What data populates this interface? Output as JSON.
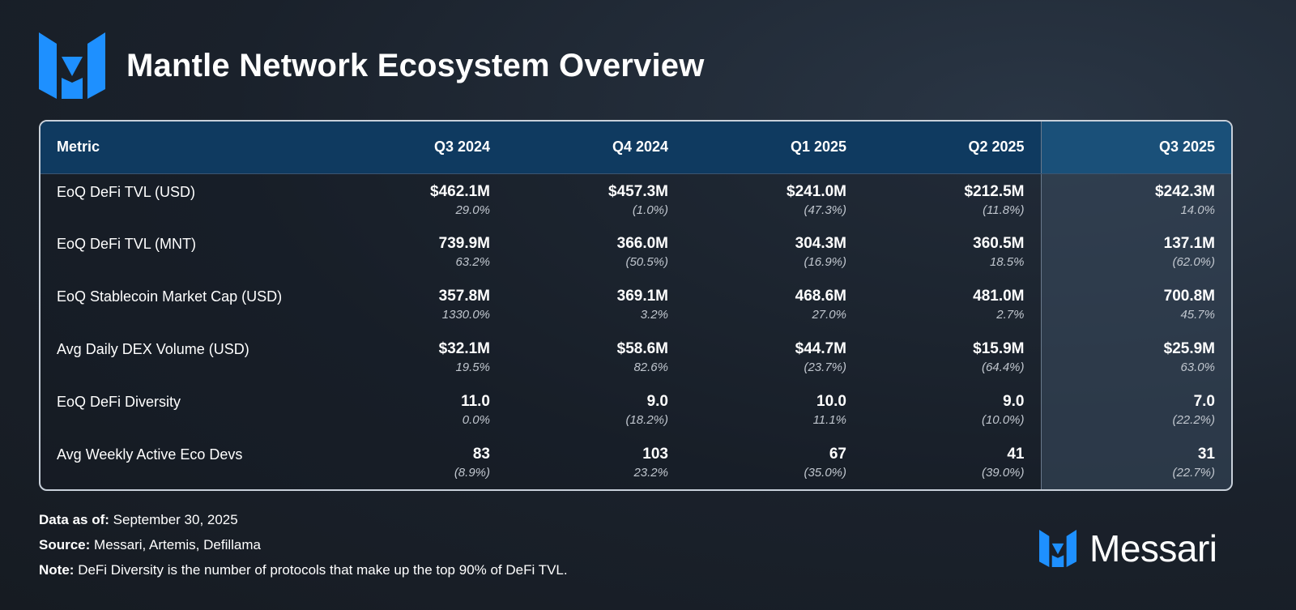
{
  "header": {
    "title": "Mantle Network Ecosystem Overview",
    "logo_icon": "messari-logo-icon"
  },
  "colors": {
    "accent": "#1e90ff",
    "header_bg": "#0f3a60",
    "highlight_bg": "#1a5079"
  },
  "chart_data": {
    "type": "table",
    "title": "Mantle Network Ecosystem Overview",
    "columns": [
      "Metric",
      "Q3 2024",
      "Q4 2024",
      "Q1 2025",
      "Q2 2025",
      "Q3 2025"
    ],
    "highlight_column": "Q3 2025",
    "rows": [
      {
        "metric": "EoQ DeFi TVL (USD)",
        "values": [
          "$462.1M",
          "$457.3M",
          "$241.0M",
          "$212.5M",
          "$242.3M"
        ],
        "changes": [
          "29.0%",
          "(1.0%)",
          "(47.3%)",
          "(11.8%)",
          "14.0%"
        ]
      },
      {
        "metric": "EoQ DeFi TVL (MNT)",
        "values": [
          "739.9M",
          "366.0M",
          "304.3M",
          "360.5M",
          "137.1M"
        ],
        "changes": [
          "63.2%",
          "(50.5%)",
          "(16.9%)",
          "18.5%",
          "(62.0%)"
        ]
      },
      {
        "metric": "EoQ Stablecoin Market Cap (USD)",
        "values": [
          "357.8M",
          "369.1M",
          "468.6M",
          "481.0M",
          "700.8M"
        ],
        "changes": [
          "1330.0%",
          "3.2%",
          "27.0%",
          "2.7%",
          "45.7%"
        ]
      },
      {
        "metric": "Avg Daily DEX Volume (USD)",
        "values": [
          "$32.1M",
          "$58.6M",
          "$44.7M",
          "$15.9M",
          "$25.9M"
        ],
        "changes": [
          "19.5%",
          "82.6%",
          "(23.7%)",
          "(64.4%)",
          "63.0%"
        ]
      },
      {
        "metric": "EoQ DeFi Diversity",
        "values": [
          "11.0",
          "9.0",
          "10.0",
          "9.0",
          "7.0"
        ],
        "changes": [
          "0.0%",
          "(18.2%)",
          "11.1%",
          "(10.0%)",
          "(22.2%)"
        ]
      },
      {
        "metric": "Avg Weekly Active Eco Devs",
        "values": [
          "83",
          "103",
          "67",
          "41",
          "31"
        ],
        "changes": [
          "(8.9%)",
          "23.2%",
          "(35.0%)",
          "(39.0%)",
          "(22.7%)"
        ]
      }
    ]
  },
  "footer": {
    "data_as_of_label": "Data as of:",
    "data_as_of": "September 30, 2025",
    "source_label": "Source:",
    "source": "Messari, Artemis, Defillama",
    "note_label": "Note:",
    "note": "DeFi Diversity is the number of protocols that make up the top 90% of DeFi TVL."
  },
  "brand": {
    "name": "Messari",
    "logo_icon": "messari-logo-icon"
  }
}
